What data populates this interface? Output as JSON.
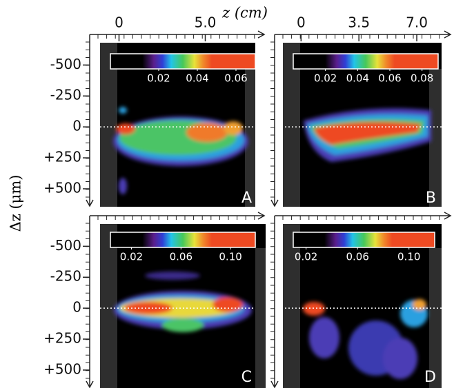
{
  "chart_data": [
    {
      "type": "heatmap",
      "panel": "A",
      "xlabel": "z (cm)",
      "ylabel": "Δz (μm)",
      "xlim": [
        -1.7,
        7.9
      ],
      "ylim": [
        -680,
        645
      ],
      "xticks": [
        0,
        {
          "value": 5,
          "label": "5.0"
        }
      ],
      "yticks": [
        -500,
        -250,
        0,
        {
          "value": 250,
          "label": "+250"
        },
        {
          "value": 500,
          "label": "+500"
        }
      ],
      "colorbar": {
        "clim": [
          -0.005,
          0.07
        ],
        "ticks": [
          0.02,
          0.04,
          0.06
        ]
      }
    },
    {
      "type": "heatmap",
      "panel": "B",
      "xlim": [
        -1.6,
        8.5
      ],
      "ylim": [
        -680,
        645
      ],
      "xticks": [
        0,
        3.5,
        {
          "value": 7,
          "label": "7.0"
        }
      ],
      "colorbar": {
        "clim": [
          0,
          0.09
        ],
        "ticks": [
          0.02,
          0.04,
          0.06,
          0.08
        ]
      }
    },
    {
      "type": "heatmap",
      "panel": "C",
      "xlim": [
        -1.7,
        7.9
      ],
      "ylim": [
        -680,
        645
      ],
      "yticks": [
        -500,
        -250,
        0,
        {
          "value": 250,
          "label": "+250"
        },
        {
          "value": 500,
          "label": "+500"
        }
      ],
      "colorbar": {
        "clim": [
          0.003,
          0.12
        ],
        "ticks": [
          0.02,
          0.06,
          {
            "value": 0.1,
            "label": "0.10"
          }
        ]
      }
    },
    {
      "type": "heatmap",
      "panel": "D",
      "xlim": [
        -1.6,
        8.5
      ],
      "ylim": [
        -680,
        645
      ],
      "colorbar": {
        "clim": [
          0.01,
          0.12
        ],
        "ticks": [
          0.02,
          0.06,
          {
            "value": 0.1,
            "label": "0.10"
          }
        ]
      }
    }
  ]
}
